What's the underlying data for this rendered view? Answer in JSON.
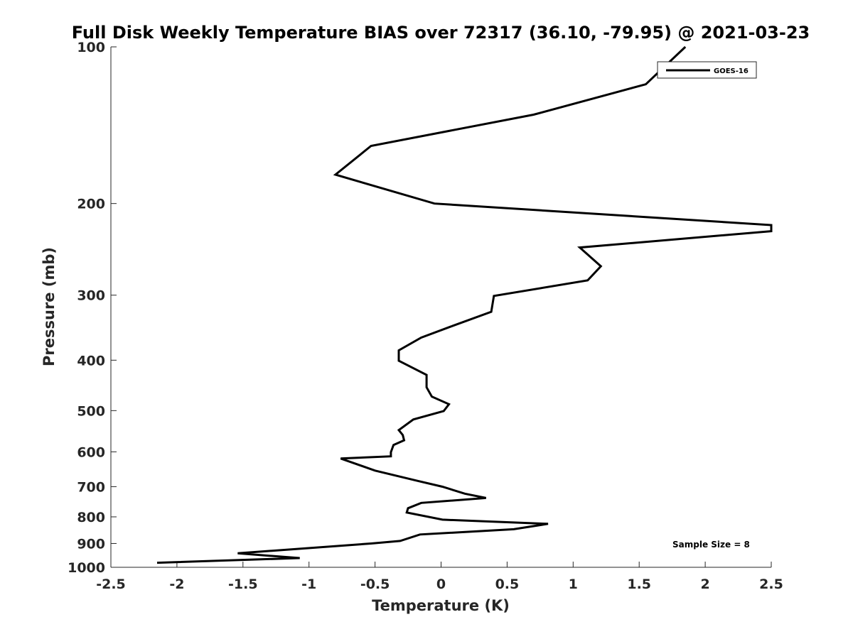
{
  "chart_data": {
    "type": "line",
    "title": "Full Disk Weekly Temperature BIAS over 72317 (36.10, -79.95) @ 2021-03-23",
    "xlabel": "Temperature (K)",
    "ylabel": "Pressure (mb)",
    "xlim": [
      -2.5,
      2.5
    ],
    "ylim": [
      100,
      1000
    ],
    "y_scale": "log",
    "y_reversed": true,
    "x_ticks": [
      "-2.5",
      "-2",
      "-1.5",
      "-1",
      "-0.5",
      "0",
      "0.5",
      "1",
      "1.5",
      "2",
      "2.5"
    ],
    "y_ticks": [
      "100",
      "200",
      "300",
      "400",
      "500",
      "600",
      "700",
      "800",
      "900",
      "1000"
    ],
    "legend": {
      "position": "top-right",
      "entries": [
        "GOES-16"
      ]
    },
    "annotation": "Sample Size = 8",
    "series": [
      {
        "name": "GOES-16",
        "color": "#000000",
        "points": [
          {
            "x": 1.85,
            "y": 100
          },
          {
            "x": 1.55,
            "y": 118
          },
          {
            "x": 0.7,
            "y": 135
          },
          {
            "x": -0.53,
            "y": 155
          },
          {
            "x": -0.8,
            "y": 176
          },
          {
            "x": -0.05,
            "y": 200
          },
          {
            "x": 2.5,
            "y": 220
          },
          {
            "x": 2.5,
            "y": 226
          },
          {
            "x": 1.05,
            "y": 243
          },
          {
            "x": 1.21,
            "y": 264
          },
          {
            "x": 1.11,
            "y": 281
          },
          {
            "x": 0.4,
            "y": 301
          },
          {
            "x": 0.38,
            "y": 323
          },
          {
            "x": 0.07,
            "y": 345
          },
          {
            "x": -0.15,
            "y": 362
          },
          {
            "x": -0.32,
            "y": 383
          },
          {
            "x": -0.32,
            "y": 401
          },
          {
            "x": -0.11,
            "y": 427
          },
          {
            "x": -0.11,
            "y": 451
          },
          {
            "x": -0.07,
            "y": 470
          },
          {
            "x": 0.06,
            "y": 486
          },
          {
            "x": 0.02,
            "y": 501
          },
          {
            "x": -0.21,
            "y": 520
          },
          {
            "x": -0.32,
            "y": 545
          },
          {
            "x": -0.29,
            "y": 557
          },
          {
            "x": -0.28,
            "y": 570
          },
          {
            "x": -0.36,
            "y": 582
          },
          {
            "x": -0.38,
            "y": 601
          },
          {
            "x": -0.38,
            "y": 612
          },
          {
            "x": -0.76,
            "y": 618
          },
          {
            "x": -0.5,
            "y": 652
          },
          {
            "x": -0.18,
            "y": 682
          },
          {
            "x": 0.01,
            "y": 700
          },
          {
            "x": 0.18,
            "y": 722
          },
          {
            "x": 0.34,
            "y": 736
          },
          {
            "x": -0.15,
            "y": 752
          },
          {
            "x": -0.25,
            "y": 770
          },
          {
            "x": -0.26,
            "y": 785
          },
          {
            "x": 0.01,
            "y": 810
          },
          {
            "x": 0.81,
            "y": 825
          },
          {
            "x": 0.55,
            "y": 845
          },
          {
            "x": -0.16,
            "y": 865
          },
          {
            "x": -0.31,
            "y": 890
          },
          {
            "x": -0.53,
            "y": 900
          },
          {
            "x": -1.54,
            "y": 940
          },
          {
            "x": -1.07,
            "y": 960
          },
          {
            "x": -2.15,
            "y": 980
          }
        ]
      }
    ]
  }
}
